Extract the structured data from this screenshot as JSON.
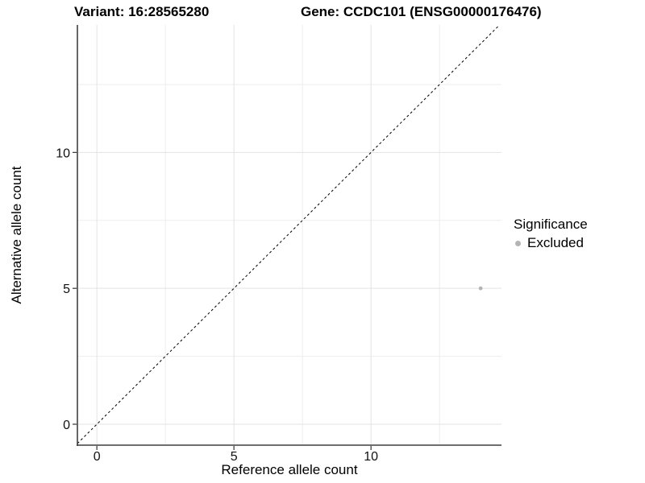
{
  "chart_data": {
    "type": "scatter",
    "titles": {
      "left": "Variant: 16:28565280",
      "right": "Gene: CCDC101 (ENSG00000176476)"
    },
    "xlabel": "Reference allele count",
    "ylabel": "Alternative allele count",
    "xlim": [
      -0.71,
      14.76
    ],
    "ylim": [
      -0.77,
      14.69
    ],
    "x_ticks": {
      "major": [
        0,
        5,
        10
      ],
      "minor": [
        2.5,
        7.5,
        12.5
      ]
    },
    "y_ticks": {
      "major": [
        0,
        5,
        10
      ],
      "minor": [
        2.5,
        7.5,
        12.5
      ]
    },
    "grid": "major+minor",
    "reference_line": {
      "kind": "identity",
      "slope": 1,
      "intercept": 0,
      "style": "dashed",
      "color": "#000000"
    },
    "series": [
      {
        "name": "Excluded",
        "color": "#b4b4b4",
        "point_radius": 2.4,
        "points": [
          {
            "x": 14,
            "y": 5
          }
        ]
      }
    ],
    "legend": {
      "title": "Significance",
      "position": "right",
      "items": [
        {
          "label": "Excluded",
          "color": "#b4b4b4",
          "swatch": "point"
        }
      ]
    },
    "colors": {
      "background": "#ffffff",
      "grid_major": "#e3e3e3",
      "grid_minor": "#ededed",
      "axis_line": "#3f3f3f",
      "tick_mark": "#333333",
      "text": "#000000"
    }
  }
}
